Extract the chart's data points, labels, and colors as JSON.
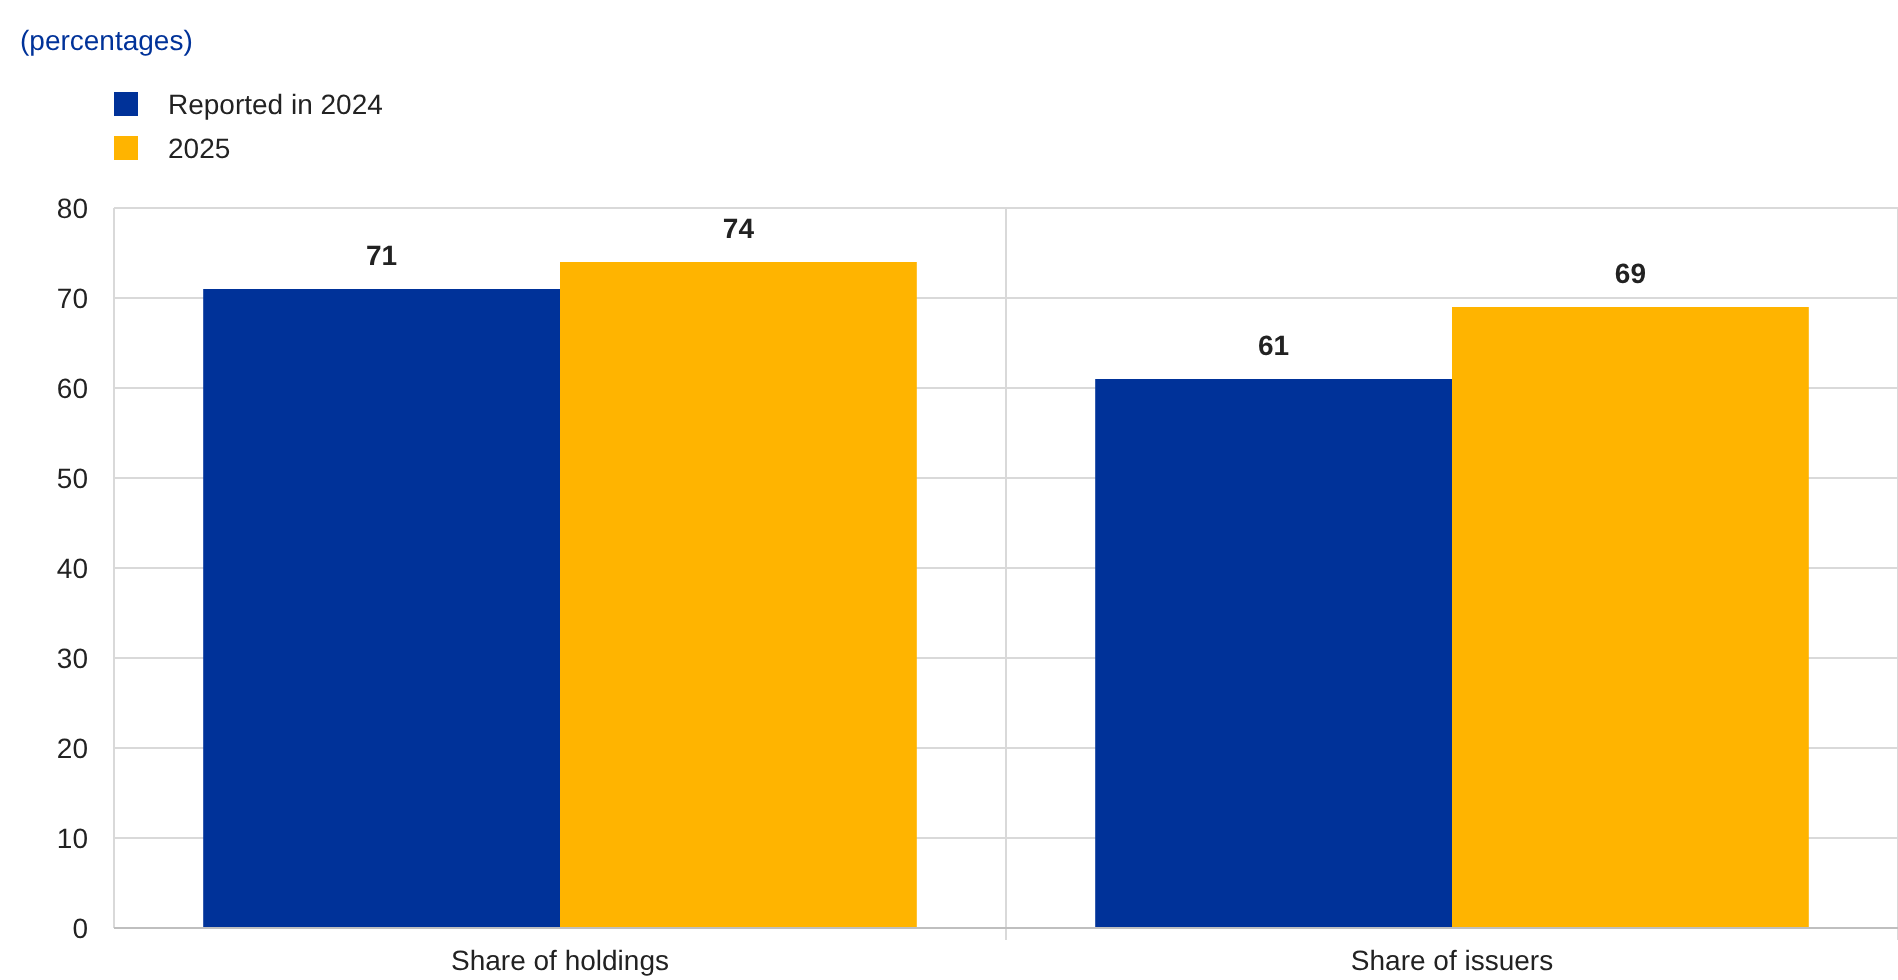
{
  "chart_data": {
    "type": "bar",
    "subtitle": "(percentages)",
    "categories": [
      "Share of holdings",
      "Share of issuers"
    ],
    "series": [
      {
        "name": "Reported in 2024",
        "color": "#003299",
        "values": [
          71,
          61
        ]
      },
      {
        "name": "2025",
        "color": "#ffb400",
        "values": [
          74,
          69
        ]
      }
    ],
    "ylim": [
      0,
      80
    ],
    "yticks": [
      0,
      10,
      20,
      30,
      40,
      50,
      60,
      70,
      80
    ],
    "grid": true,
    "legend": "top left",
    "data_labels": true
  }
}
